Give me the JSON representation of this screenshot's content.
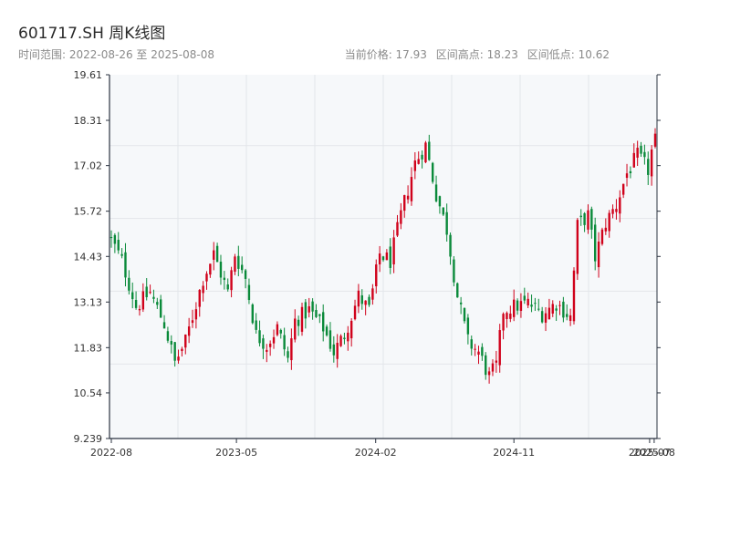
{
  "header": {
    "title": "601717.SH 周K线图",
    "time_range": "时间范围: 2022-08-26 至 2025-08-08",
    "current_price": "当前价格: 17.93",
    "range_high": "区间高点: 18.23",
    "range_low": "区间低点: 10.62"
  },
  "colors": {
    "up": "#d0021b",
    "down": "#0a8a3a",
    "plot_bg": "#f6f8fa",
    "grid": "#e3e6ea",
    "axis": "#2b3340"
  },
  "chart_data": {
    "type": "candlestick",
    "title": "601717.SH 周K线图",
    "ylim": [
      9.239,
      19.61
    ],
    "y_ticks": [
      "9.239",
      "10.54",
      "11.83",
      "13.13",
      "14.43",
      "15.72",
      "17.02",
      "18.31",
      "19.61"
    ],
    "x_ticks": [
      "2022-08",
      "2023-05",
      "2024-02",
      "2024-11",
      "2025-07",
      "2025-08"
    ],
    "x_range": [
      "2022-08-26",
      "2025-08-08"
    ],
    "grid": true,
    "anchors": [
      [
        "2022-08-26",
        14.9
      ],
      [
        "2022-09-16",
        14.3
      ],
      [
        "2022-10-14",
        13.0
      ],
      [
        "2022-11-11",
        13.4
      ],
      [
        "2022-12-09",
        12.5
      ],
      [
        "2022-12-30",
        11.4
      ],
      [
        "2023-01-20",
        12.0
      ],
      [
        "2023-02-24",
        13.8
      ],
      [
        "2023-03-17",
        14.5
      ],
      [
        "2023-04-14",
        13.4
      ],
      [
        "2023-04-28",
        14.5
      ],
      [
        "2023-05-19",
        13.8
      ],
      [
        "2023-06-09",
        12.2
      ],
      [
        "2023-06-30",
        11.9
      ],
      [
        "2023-07-21",
        12.4
      ],
      [
        "2023-08-11",
        11.5
      ],
      [
        "2023-08-25",
        12.6
      ],
      [
        "2023-09-22",
        12.9
      ],
      [
        "2023-10-20",
        12.4
      ],
      [
        "2023-11-10",
        11.7
      ],
      [
        "2023-12-01",
        12.2
      ],
      [
        "2023-12-29",
        13.3
      ],
      [
        "2024-01-19",
        12.9
      ],
      [
        "2024-02-09",
        14.5
      ],
      [
        "2024-03-01",
        14.3
      ],
      [
        "2024-03-22",
        15.6
      ],
      [
        "2024-04-19",
        17.1
      ],
      [
        "2024-05-10",
        17.6
      ],
      [
        "2024-05-31",
        16.2
      ],
      [
        "2024-06-21",
        15.2
      ],
      [
        "2024-07-12",
        13.3
      ],
      [
        "2024-08-02",
        12.0
      ],
      [
        "2024-08-23",
        11.7
      ],
      [
        "2024-09-13",
        11.0
      ],
      [
        "2024-09-27",
        11.3
      ],
      [
        "2024-10-11",
        12.9
      ],
      [
        "2024-11-01",
        13.0
      ],
      [
        "2024-11-29",
        13.1
      ],
      [
        "2024-12-27",
        12.8
      ],
      [
        "2025-01-24",
        13.1
      ],
      [
        "2025-02-21",
        12.7
      ],
      [
        "2025-03-07",
        15.3
      ],
      [
        "2025-03-28",
        15.6
      ],
      [
        "2025-04-11",
        14.4
      ],
      [
        "2025-05-02",
        15.4
      ],
      [
        "2025-05-23",
        15.9
      ],
      [
        "2025-06-13",
        16.8
      ],
      [
        "2025-07-04",
        17.3
      ],
      [
        "2025-07-25",
        16.9
      ],
      [
        "2025-08-08",
        17.93
      ]
    ]
  }
}
